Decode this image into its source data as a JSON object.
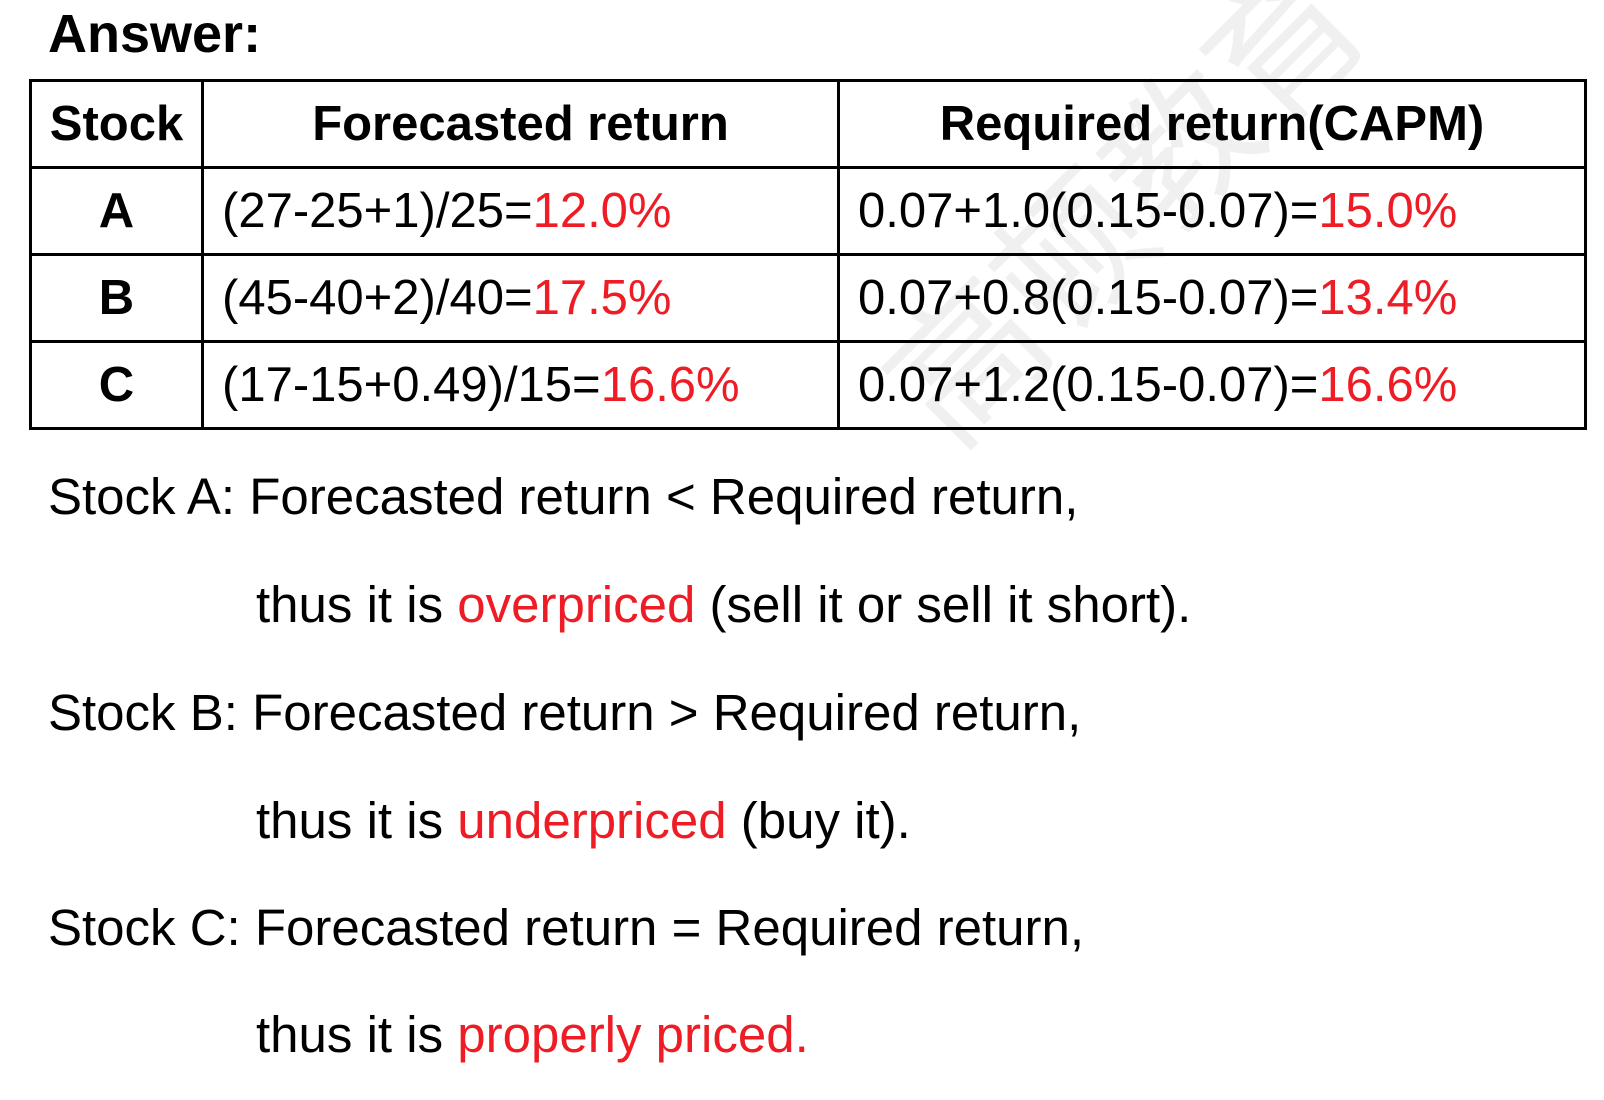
{
  "heading": "Answer:",
  "table": {
    "headers": [
      "Stock",
      "Forecasted return",
      "Required return(CAPM)"
    ],
    "rows": [
      {
        "stock": "A",
        "forecast_formula": "(27-25+1)/25=",
        "forecast_result": "12.0%",
        "required_formula": "0.07+1.0(0.15-0.07)=",
        "required_result": "15.0%"
      },
      {
        "stock": "B",
        "forecast_formula": "(45-40+2)/40=",
        "forecast_result": "17.5%",
        "required_formula": "0.07+0.8(0.15-0.07)=",
        "required_result": "13.4%"
      },
      {
        "stock": "C",
        "forecast_formula": "(17-15+0.49)/15=",
        "forecast_result": "16.6%",
        "required_formula": "0.07+1.2(0.15-0.07)=",
        "required_result": "16.6%"
      }
    ]
  },
  "conclusions": [
    {
      "comparison": "Stock A: Forecasted return < Required return,",
      "prefix": "thus it is ",
      "verdict": "overpriced",
      "suffix": " (sell it or sell it short)."
    },
    {
      "comparison": "Stock B: Forecasted return > Required return,",
      "prefix": "thus it is ",
      "verdict": "underpriced",
      "suffix": " (buy it)."
    },
    {
      "comparison": "Stock C: Forecasted return = Required return,",
      "prefix": "thus it is ",
      "verdict": "properly priced.",
      "suffix": ""
    }
  ],
  "watermark": "高顿教育",
  "colors": {
    "text": "#000000",
    "highlight": "#ee1c25",
    "border": "#000000"
  }
}
